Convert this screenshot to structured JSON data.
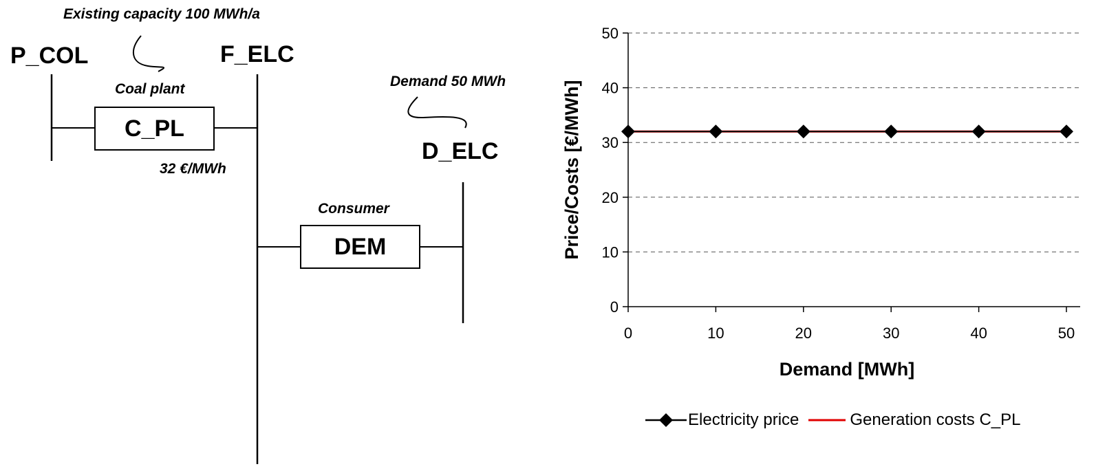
{
  "diagram": {
    "commodity_left": "P_COL",
    "commodity_mid": "F_ELC",
    "commodity_right": "D_ELC",
    "annotation_capacity": "Existing capacity 100 MWh/a",
    "process_coal_caption": "Coal plant",
    "process_coal_label": "C_PL",
    "process_coal_cost": "32 €/MWh",
    "process_demand_caption": "Consumer",
    "process_demand_label": "DEM",
    "annotation_demand": "Demand 50 MWh"
  },
  "chart_data": {
    "type": "line",
    "title": "",
    "xlabel": "Demand [MWh]",
    "ylabel": "Price/Costs [€/MWh]",
    "xlim": [
      0,
      50
    ],
    "ylim": [
      0,
      50
    ],
    "xticks": [
      0,
      10,
      20,
      30,
      40,
      50
    ],
    "yticks": [
      0,
      10,
      20,
      30,
      40,
      50
    ],
    "grid": "horizontal dashed",
    "legend_position": "bottom",
    "series": [
      {
        "name": "Electricity price",
        "color": "#000000",
        "marker": "diamond",
        "x": [
          0,
          10,
          20,
          30,
          40,
          50
        ],
        "y": [
          32,
          32,
          32,
          32,
          32,
          32
        ]
      },
      {
        "name": "Generation costs C_PL",
        "color": "#e00000",
        "marker": "none",
        "x": [
          0,
          50
        ],
        "y": [
          32,
          32
        ]
      }
    ]
  }
}
